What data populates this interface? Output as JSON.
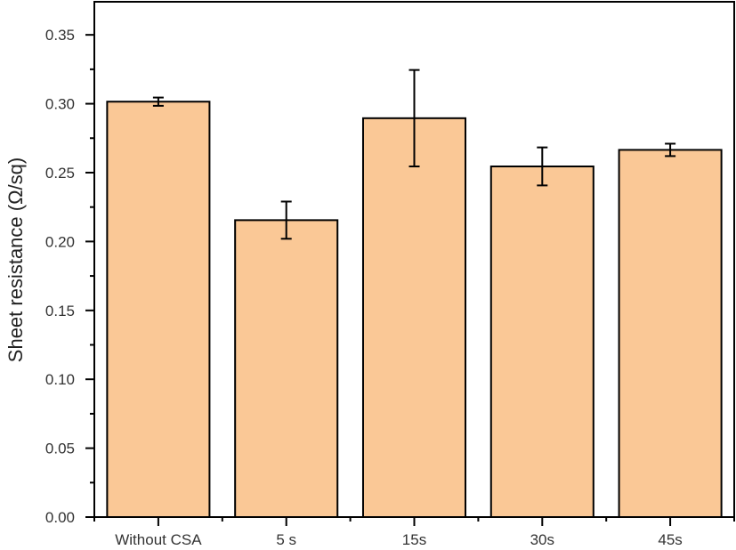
{
  "chart_data": {
    "type": "bar",
    "title": "",
    "xlabel": "",
    "ylabel": "Sheet resistance (Ω/sq)",
    "categories": [
      "Without CSA",
      "5 s",
      "15s",
      "30s",
      "45s"
    ],
    "values": [
      0.3015,
      0.2155,
      0.2895,
      0.2545,
      0.2665
    ],
    "errors": [
      0.003,
      0.0135,
      0.035,
      0.0138,
      0.0045
    ],
    "ylim": [
      0,
      0.374
    ],
    "yticks": [
      "0.00",
      "0.05",
      "0.10",
      "0.15",
      "0.20",
      "0.25",
      "0.30",
      "0.35"
    ],
    "grid": false,
    "legend": "none",
    "bar_color": "#FAC896",
    "edge_color": "#000000"
  }
}
